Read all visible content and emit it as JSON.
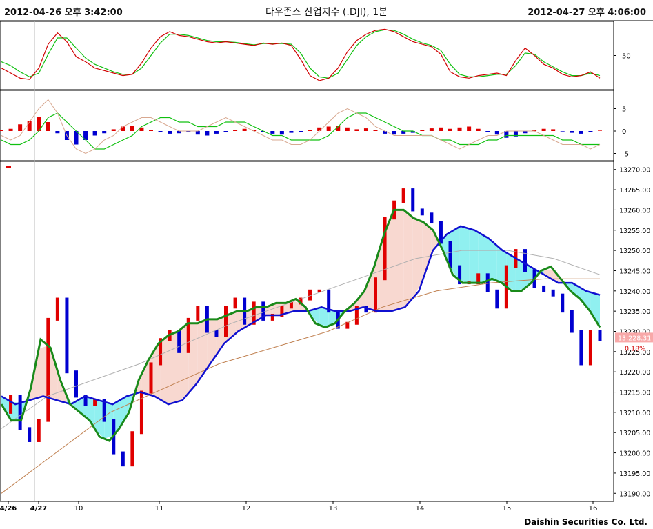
{
  "header": {
    "start": "2012-04-26 오후 3:42:00",
    "title": "다우존스 산업지수 (.DJI), 1분",
    "end": "2012-04-27 오후 4:06:00"
  },
  "footer": {
    "brand": "Daishin Securities Co. Ltd."
  },
  "colors": {
    "up": "#e00000",
    "down": "#0000d0",
    "ma_short": "#1a8a1a",
    "ma_mid": "#1010d0",
    "ma_long": "#b0b0b0",
    "ma_longest": "#c08050",
    "fill_up": "#f8d8d0",
    "fill_down": "#90f0f0",
    "fill_tan": "#c8a070",
    "stoch_k": "#d00000",
    "stoch_d": "#10c010"
  },
  "chart_data": [
    {
      "type": "line",
      "panel": "stochastic",
      "ytick_labels": [
        "50"
      ],
      "series": [
        {
          "key": "k",
          "values": [
            30,
            22,
            14,
            12,
            30,
            68,
            86,
            72,
            48,
            40,
            30,
            26,
            22,
            18,
            20,
            38,
            62,
            80,
            88,
            82,
            80,
            76,
            72,
            70,
            72,
            70,
            68,
            66,
            70,
            68,
            70,
            66,
            44,
            18,
            10,
            14,
            30,
            56,
            74,
            84,
            90,
            92,
            88,
            80,
            72,
            68,
            64,
            52,
            24,
            16,
            14,
            18,
            20,
            22,
            18,
            42,
            62,
            50,
            36,
            30,
            20,
            16,
            18,
            24,
            14
          ]
        },
        {
          "key": "d",
          "values": [
            40,
            34,
            24,
            16,
            22,
            52,
            78,
            78,
            62,
            46,
            36,
            30,
            24,
            20,
            20,
            30,
            50,
            70,
            84,
            84,
            82,
            78,
            74,
            72,
            72,
            71,
            69,
            67,
            69,
            69,
            69,
            68,
            54,
            30,
            16,
            14,
            22,
            44,
            66,
            80,
            88,
            91,
            90,
            84,
            76,
            70,
            66,
            58,
            36,
            20,
            16,
            16,
            18,
            20,
            20,
            34,
            54,
            52,
            40,
            32,
            24,
            18,
            18,
            22,
            18
          ]
        }
      ]
    },
    {
      "type": "bar",
      "panel": "macd",
      "ytick_labels": [
        "5",
        "0",
        "-5"
      ],
      "histogram": [
        0.2,
        0.5,
        1.5,
        2.2,
        3.2,
        2.0,
        -0.5,
        -2.0,
        -3.0,
        -2.0,
        -1.0,
        -0.5,
        0.4,
        1.0,
        1.2,
        0.8,
        0.2,
        -0.3,
        -0.6,
        -0.5,
        -0.3,
        -0.8,
        -1.0,
        -0.6,
        -0.2,
        0.2,
        0.5,
        0.3,
        -0.2,
        -0.6,
        -0.8,
        -0.4,
        -0.2,
        0.3,
        0.8,
        1.0,
        1.2,
        0.8,
        0.4,
        0.6,
        0.2,
        -0.6,
        -0.8,
        -0.6,
        -0.4,
        0.3,
        0.6,
        0.8,
        0.5,
        0.8,
        1.0,
        0.5,
        -0.2,
        -0.8,
        -1.5,
        -1.2,
        -0.5,
        0.2,
        0.5,
        0.4,
        -0.1,
        -0.4,
        -0.6,
        -0.3,
        0.1
      ],
      "series": [
        {
          "key": "macd",
          "values": [
            -1,
            -2,
            -1,
            2,
            5,
            7,
            4,
            -1,
            -4,
            -5,
            -4,
            -2,
            -1,
            1,
            2,
            3,
            3,
            2,
            1,
            0,
            0,
            0,
            1,
            2,
            3,
            2,
            1,
            0,
            -1,
            -2,
            -2,
            -3,
            -3,
            -2,
            0,
            2,
            4,
            5,
            4,
            3,
            1,
            0,
            -1,
            -1,
            -1,
            -1,
            -1,
            -2,
            -3,
            -4,
            -3,
            -2,
            -1,
            -1,
            0,
            0,
            0,
            0,
            -1,
            -2,
            -3,
            -3,
            -3,
            -4,
            -3
          ]
        },
        {
          "key": "signal",
          "values": [
            -2,
            -3,
            -3,
            -2,
            0,
            3,
            4,
            2,
            0,
            -2,
            -4,
            -4,
            -3,
            -2,
            -1,
            1,
            2,
            3,
            3,
            2,
            2,
            1,
            1,
            1,
            2,
            2,
            2,
            1,
            0,
            -1,
            -1,
            -2,
            -2,
            -2,
            -2,
            -1,
            1,
            3,
            4,
            4,
            3,
            2,
            1,
            0,
            0,
            -1,
            -1,
            -2,
            -2,
            -3,
            -3,
            -3,
            -2,
            -2,
            -1,
            -1,
            -1,
            -1,
            -1,
            -1,
            -2,
            -2,
            -3,
            -3,
            -3
          ]
        }
      ]
    },
    {
      "type": "line",
      "panel": "price",
      "x_labels": [
        "4/26",
        "4/27",
        "10",
        "11",
        "12",
        "13",
        "14",
        "15",
        "16"
      ],
      "ytick_labels": [
        "13270.00",
        "13265.00",
        "13260.00",
        "13255.00",
        "13250.00",
        "13245.00",
        "13240.00",
        "13235.00",
        "13230.00",
        "13225.00",
        "13220.00",
        "13215.00",
        "13210.00",
        "13205.00",
        "13200.00",
        "13195.00",
        "13190.00"
      ],
      "ylim": [
        13188,
        13272
      ],
      "last_price": "13,228.31",
      "change_pct": "0.18%",
      "price": [
        13210,
        13214,
        13206,
        13203,
        13208,
        13233,
        13238,
        13220,
        13214,
        13212,
        13213,
        13208,
        13200,
        13197,
        13205,
        13215,
        13222,
        13228,
        13230,
        13225,
        13233,
        13236,
        13230,
        13229,
        13236,
        13238,
        13232,
        13237,
        13233,
        13234,
        13236,
        13237,
        13238,
        13240,
        13240,
        13235,
        13231,
        13232,
        13236,
        13235,
        13243,
        13258,
        13262,
        13265,
        13260,
        13259,
        13257,
        13252,
        13246,
        13242,
        13242,
        13244,
        13240,
        13236,
        13246,
        13250,
        13245,
        13241,
        13240,
        13239,
        13235,
        13230,
        13222,
        13230,
        13228
      ],
      "series": [
        {
          "key": "ma_short",
          "values": [
            13212,
            13208,
            13208,
            13216,
            13228,
            13226,
            13218,
            13212,
            13210,
            13208,
            13204,
            13203,
            13206,
            13210,
            13218,
            13223,
            13227,
            13229,
            13230,
            13232,
            13232,
            13233,
            13233,
            13234,
            13235,
            13235,
            13236,
            13236,
            13237,
            13237,
            13238,
            13236,
            13232,
            13231,
            13232,
            13235,
            13237,
            13240,
            13246,
            13254,
            13260,
            13260,
            13258,
            13257,
            13255,
            13250,
            13244,
            13242,
            13242,
            13242,
            13243,
            13242,
            13240,
            13240,
            13242,
            13245,
            13246,
            13243,
            13240,
            13238,
            13235,
            13231
          ]
        },
        {
          "key": "ma_mid",
          "values": [
            13214,
            13212,
            13213,
            13214,
            13213,
            13212,
            13214,
            13213,
            13212,
            13214,
            13215,
            13214,
            13212,
            13213,
            13217,
            13222,
            13227,
            13230,
            13232,
            13234,
            13234,
            13235,
            13235,
            13236,
            13235,
            13235,
            13236,
            13235,
            13235,
            13236,
            13240,
            13250,
            13254,
            13256,
            13255,
            13253,
            13250,
            13248,
            13246,
            13244,
            13242,
            13242,
            13240,
            13239
          ]
        },
        {
          "key": "ma_long",
          "values": [
            13206,
            13214,
            13218,
            13222,
            13227,
            13232,
            13236,
            13240,
            13244,
            13248,
            13250,
            13250,
            13248,
            13244
          ]
        },
        {
          "key": "ma_longest",
          "values": [
            13190,
            13200,
            13210,
            13216,
            13222,
            13226,
            13230,
            13236,
            13240,
            13242,
            13243,
            13243
          ]
        }
      ]
    }
  ]
}
